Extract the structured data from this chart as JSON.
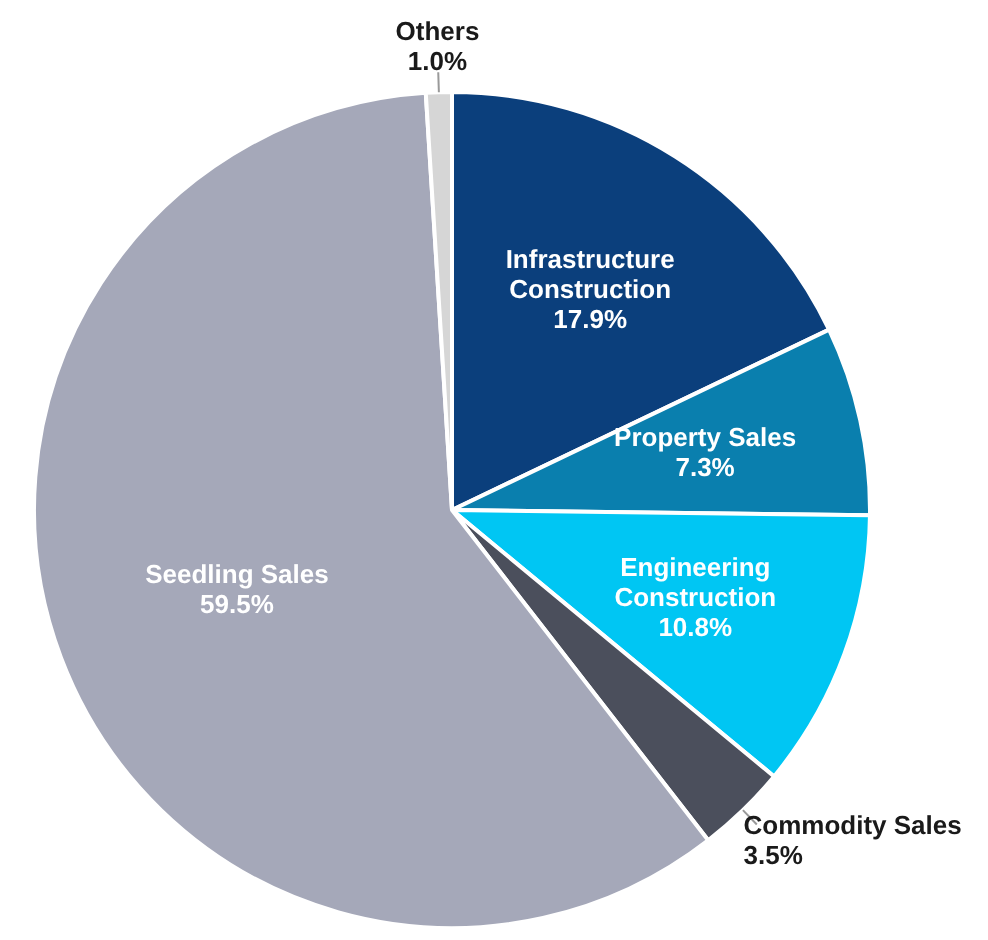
{
  "chart_data": {
    "type": "pie",
    "categories": [
      "Infrastructure Construction",
      "Property Sales",
      "Engineering Construction",
      "Commodity Sales",
      "Seedling Sales",
      "Others"
    ],
    "values": [
      17.9,
      7.3,
      10.8,
      3.5,
      59.5,
      1.0
    ],
    "value_labels": [
      "17.9%",
      "7.3%",
      "10.8%",
      "3.5%",
      "59.5%",
      "1.0%"
    ],
    "colors": [
      "#0b3f7c",
      "#0a7fae",
      "#00c6f3",
      "#4b4f5c",
      "#a5a8b9",
      "#d6d6d6"
    ],
    "legend": false
  }
}
